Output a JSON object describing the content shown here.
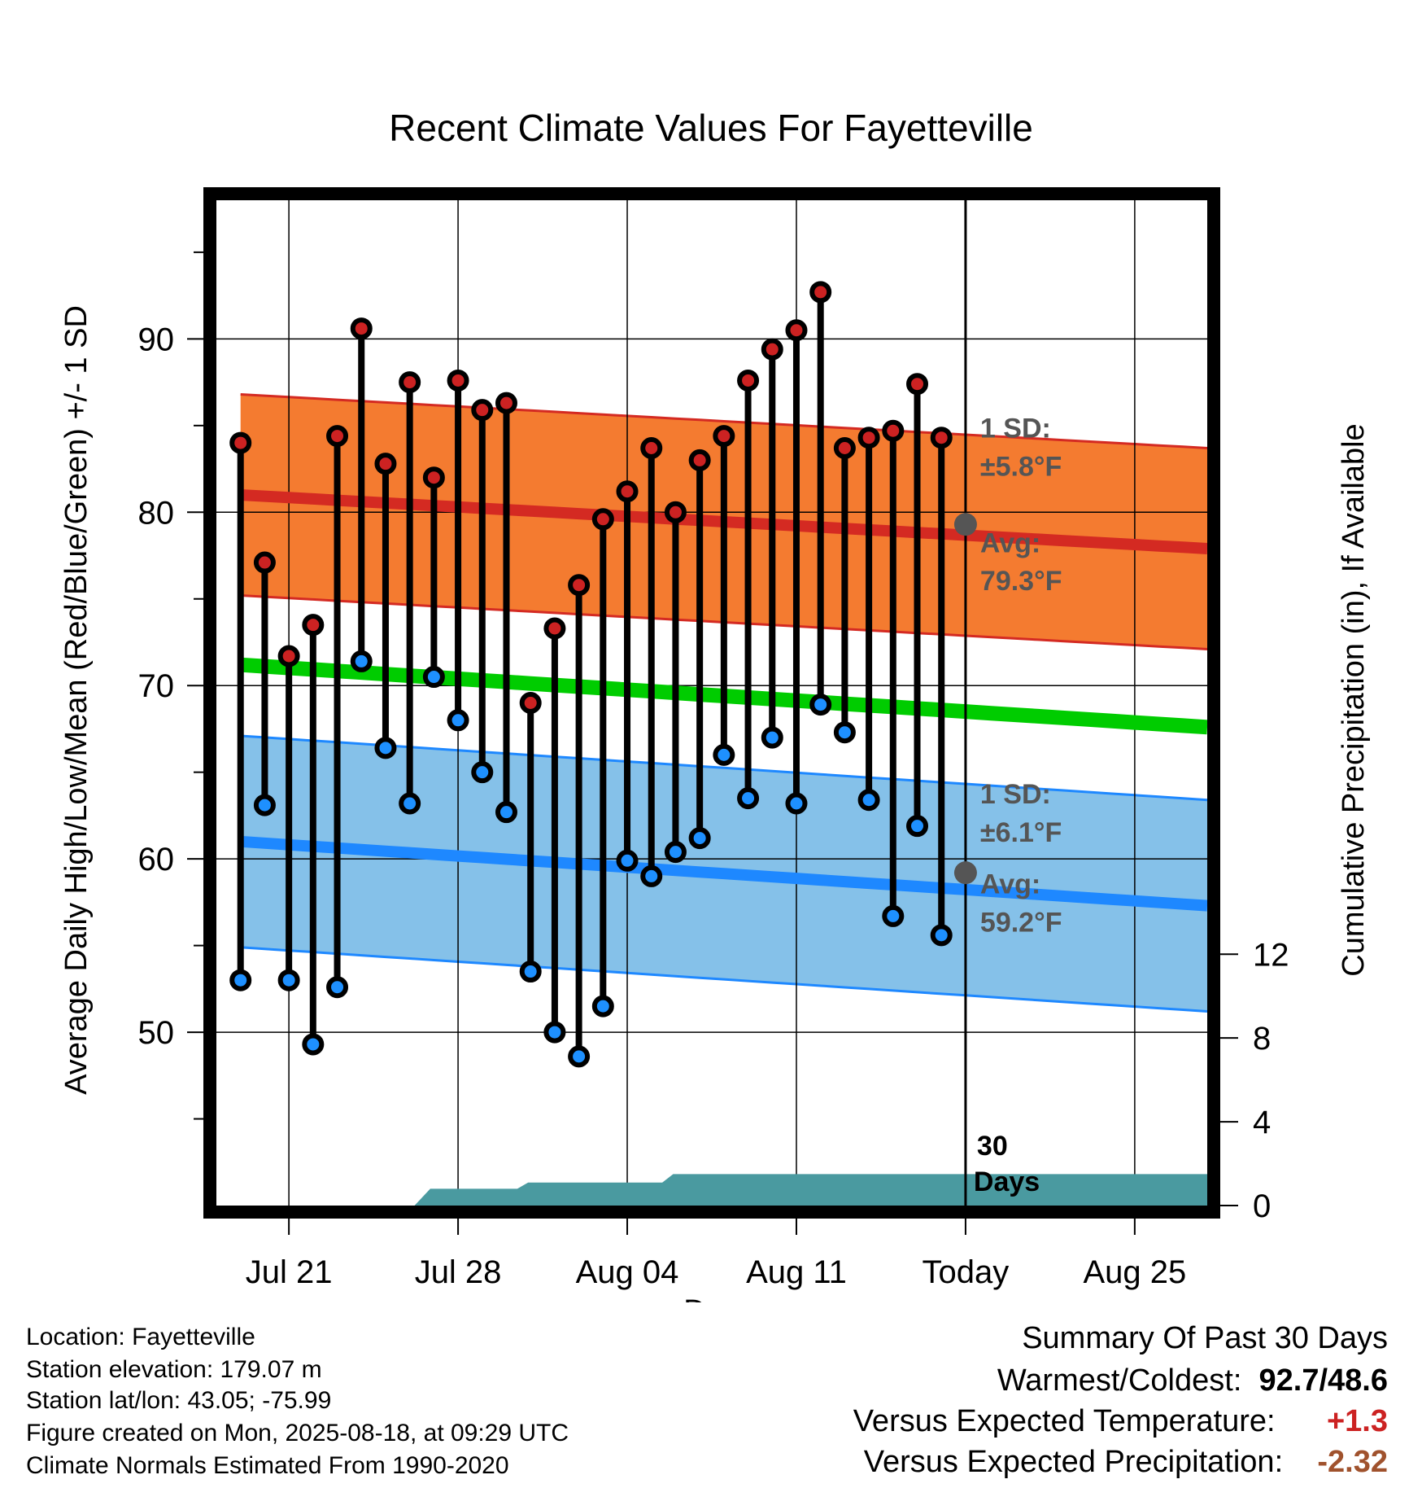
{
  "chart_data": {
    "type": "line",
    "title": "Recent Climate Values For Fayetteville",
    "xlabel": "Day",
    "ylabel": "Average Daily High/Low/Mean (Red/Blue/Green) +/- 1 SD",
    "y2label": "Cumulative Precipitation (in), If Available",
    "ylim": [
      40,
      98
    ],
    "y2lim": [
      0,
      48
    ],
    "yticks": [
      50,
      60,
      70,
      80,
      90
    ],
    "y2ticks": [
      0,
      4,
      8,
      12
    ],
    "xticks": [
      {
        "date": "2025-07-21",
        "label": "Jul 21"
      },
      {
        "date": "2025-07-28",
        "label": "Jul 28"
      },
      {
        "date": "2025-08-04",
        "label": "Aug 04"
      },
      {
        "date": "2025-08-11",
        "label": "Aug 11"
      },
      {
        "date": "2025-08-18",
        "label": "Today"
      },
      {
        "date": "2025-08-25",
        "label": "Aug 25"
      }
    ],
    "xlim": [
      "2025-07-18",
      "2025-08-28"
    ],
    "today": "2025-08-18",
    "grid": true,
    "days": [
      "2025-07-19",
      "2025-07-20",
      "2025-07-21",
      "2025-07-22",
      "2025-07-23",
      "2025-07-24",
      "2025-07-25",
      "2025-07-26",
      "2025-07-27",
      "2025-07-28",
      "2025-07-29",
      "2025-07-30",
      "2025-07-31",
      "2025-08-01",
      "2025-08-02",
      "2025-08-03",
      "2025-08-04",
      "2025-08-05",
      "2025-08-06",
      "2025-08-07",
      "2025-08-08",
      "2025-08-09",
      "2025-08-10",
      "2025-08-11",
      "2025-08-12",
      "2025-08-13",
      "2025-08-14",
      "2025-08-15",
      "2025-08-16",
      "2025-08-17"
    ],
    "series": [
      {
        "name": "High",
        "color": "#cc2222",
        "values": [
          84.0,
          77.1,
          71.7,
          73.5,
          84.4,
          90.6,
          82.8,
          87.5,
          82.0,
          87.6,
          85.9,
          86.3,
          69.0,
          73.3,
          75.8,
          79.6,
          81.2,
          83.7,
          80.0,
          83.0,
          84.4,
          87.6,
          89.4,
          90.5,
          92.7,
          83.7,
          84.3,
          84.7,
          87.4,
          84.3
        ]
      },
      {
        "name": "Low",
        "color": "#1e90ff",
        "values": [
          53.0,
          63.1,
          53.0,
          49.3,
          52.6,
          71.4,
          66.4,
          63.2,
          70.5,
          68.0,
          65.0,
          62.7,
          53.5,
          50.0,
          48.6,
          51.5,
          59.9,
          59.0,
          60.4,
          61.2,
          66.0,
          63.5,
          67.0,
          63.2,
          68.9,
          67.3,
          63.4,
          56.7,
          61.9,
          55.6
        ]
      },
      {
        "name": "Precipitation",
        "color": "#4a9aa0",
        "type": "area",
        "values": [
          0,
          0,
          0,
          0,
          0,
          0,
          0,
          0,
          0.8,
          0.8,
          0.8,
          0.8,
          1.1,
          1.1,
          1.1,
          1.1,
          1.1,
          1.1,
          1.5,
          1.5,
          1.5,
          1.5,
          1.5,
          1.5,
          1.5,
          1.5,
          1.5,
          1.5,
          1.5,
          1.5
        ]
      }
    ],
    "normals": {
      "dates": [
        "2025-07-19",
        "2025-08-28"
      ],
      "high_avg": [
        81.0,
        77.9
      ],
      "high_sd": 5.8,
      "low_avg": [
        61.0,
        57.3
      ],
      "low_sd": 6.1,
      "mean_avg": [
        71.2,
        67.6
      ],
      "colors": {
        "high_band": "#f47b30",
        "high_line": "#d42a22",
        "low_band": "#85c1e9",
        "low_line": "#1e88ff",
        "mean_line": "#00cc00"
      }
    },
    "annotations": {
      "high_sd_line1": "1 SD:",
      "high_sd_line2": "±5.8°F",
      "high_avg_line1": "Avg:",
      "high_avg_line2": "79.3°F",
      "high_avg_value": 79.3,
      "low_sd_line1": "1 SD:",
      "low_sd_line2": "±6.1°F",
      "low_avg_line1": "Avg:",
      "low_avg_line2": "59.2°F",
      "low_avg_value": 59.2,
      "precip_line1": "30",
      "precip_line2": "Days"
    }
  },
  "info": {
    "location": "Location: Fayetteville",
    "elevation": "Station elevation: 179.07 m",
    "latlon": "Station lat/lon: 43.05; -75.99",
    "created": "Figure created on Mon, 2025-08-18, at 09:29 UTC",
    "normals": "Climate Normals Estimated From 1990-2020"
  },
  "summary": {
    "title": "Summary Of Past 30 Days",
    "warm_label": "Warmest/Coldest:",
    "warm_value": "92.7/48.6",
    "temp_label": "Versus Expected Temperature:",
    "temp_value": "+1.3",
    "precip_label": "Versus Expected Precipitation:",
    "precip_value": "-2.32"
  }
}
